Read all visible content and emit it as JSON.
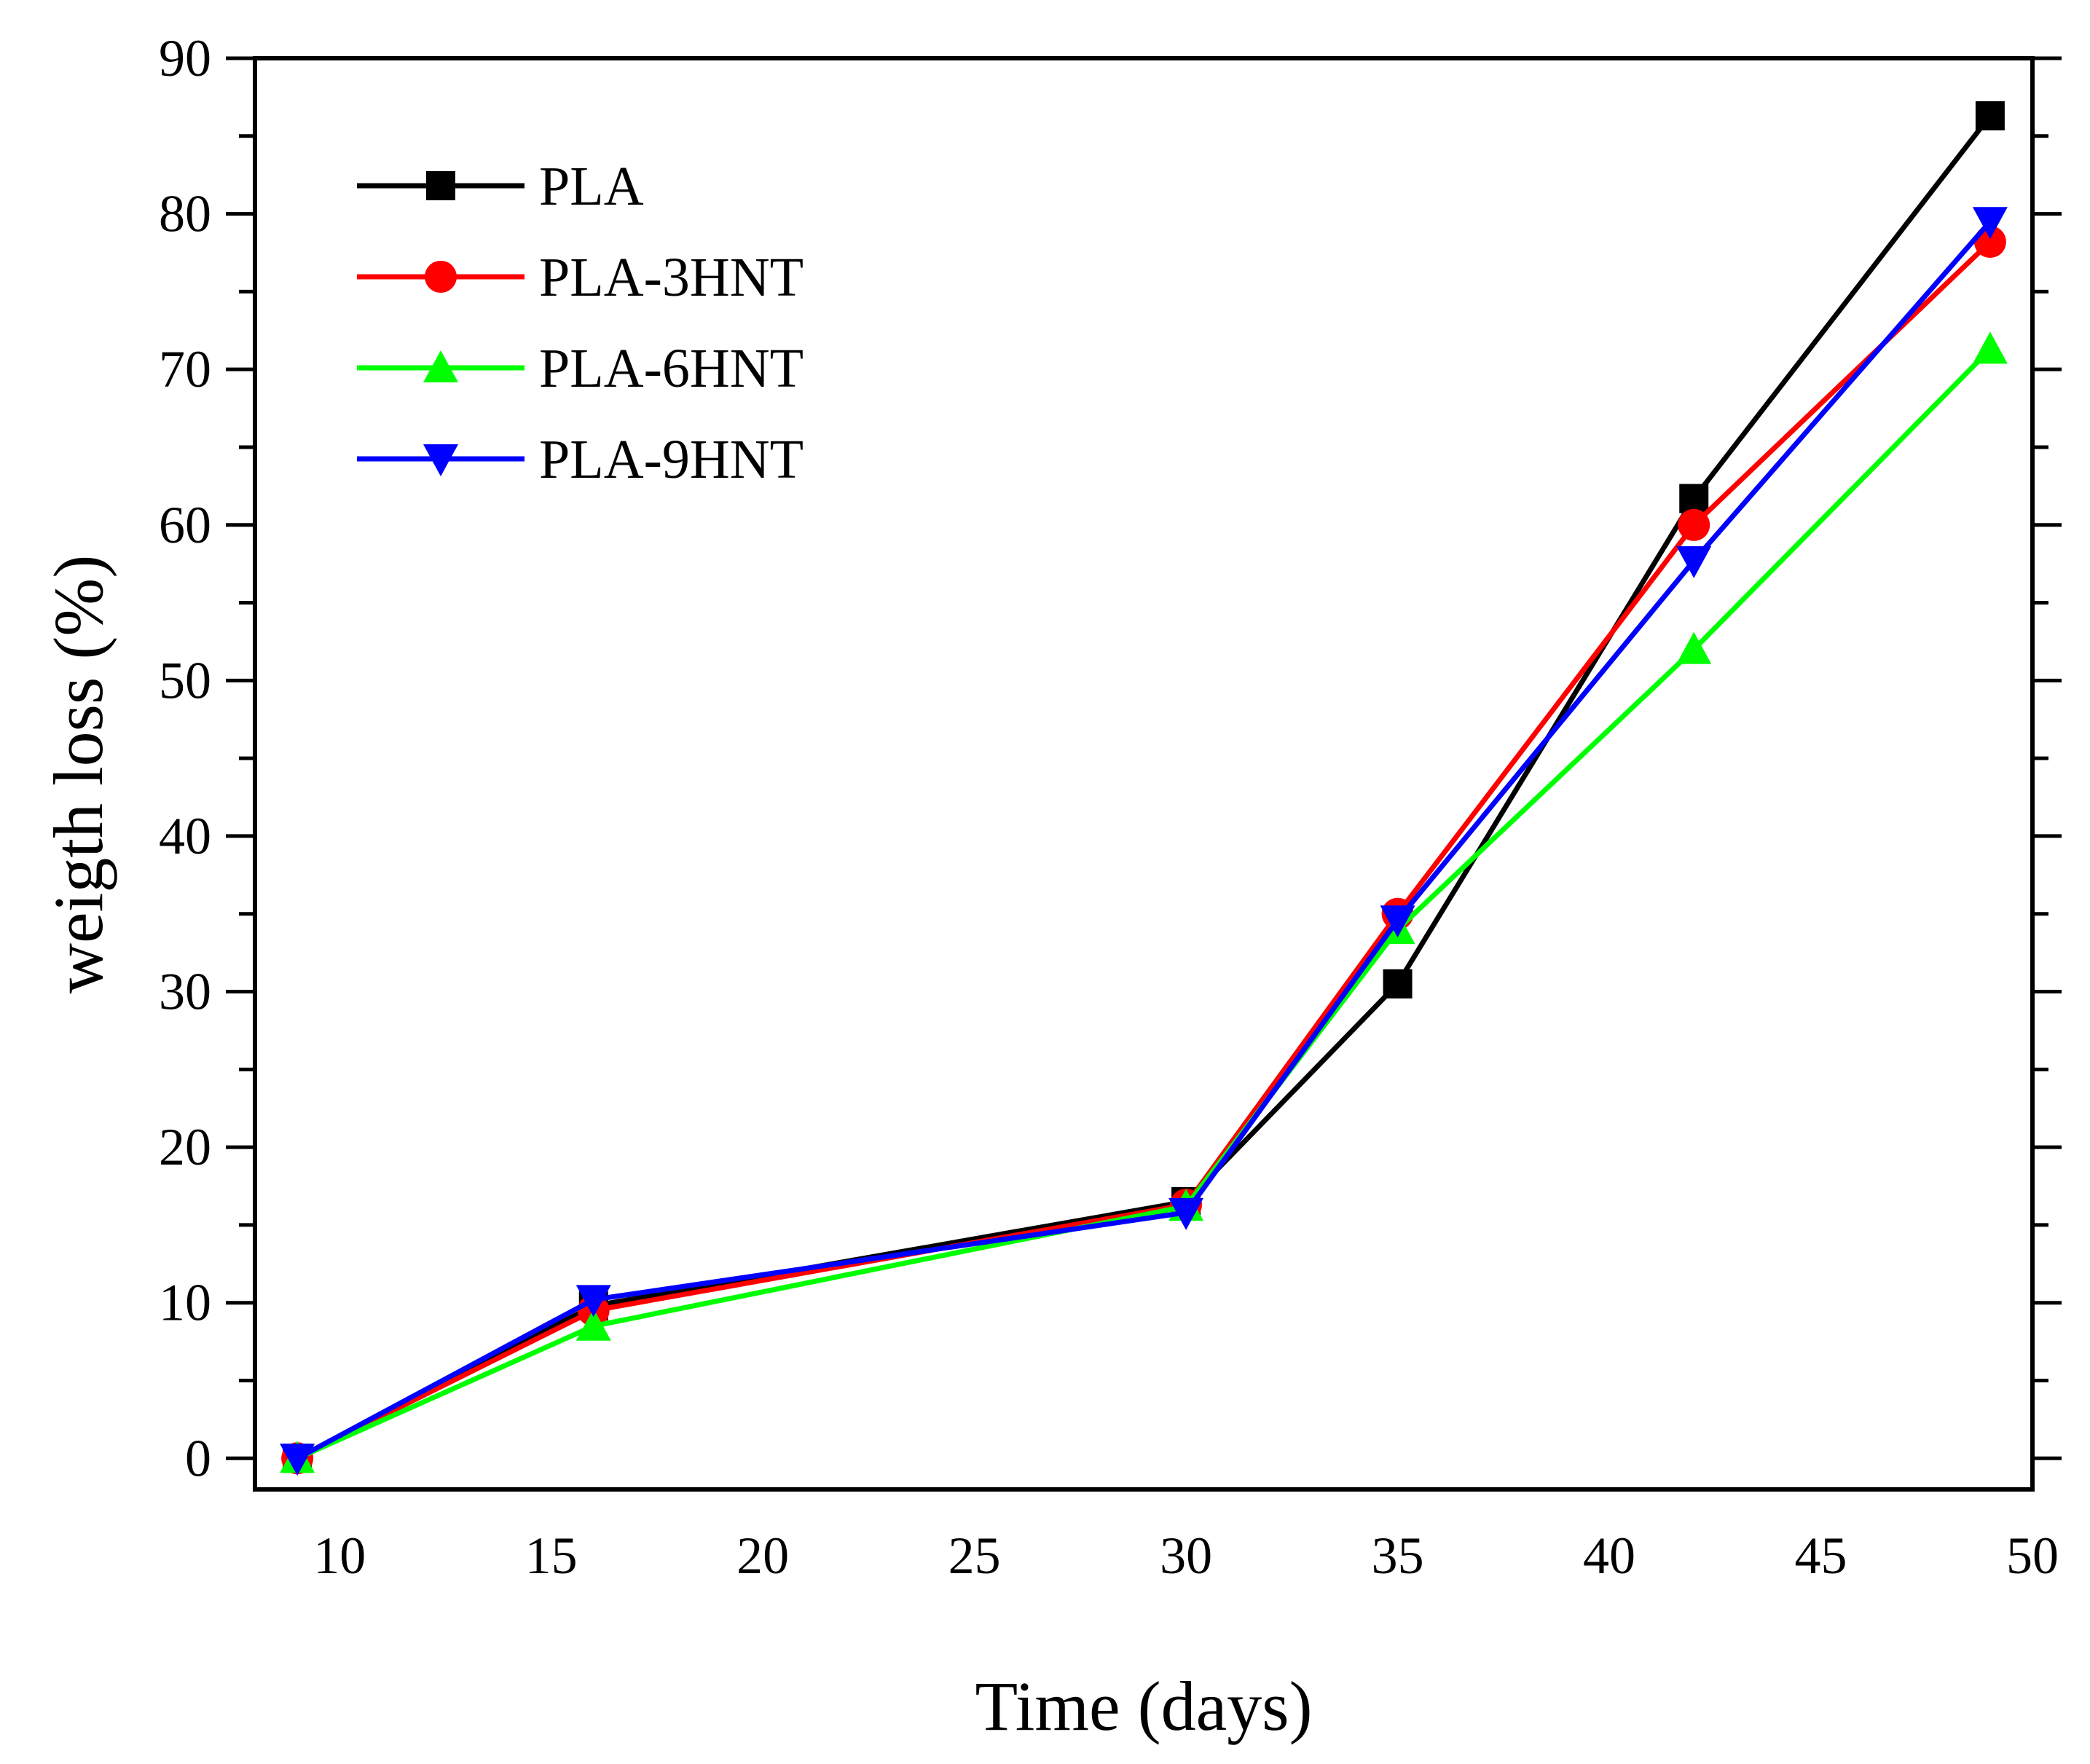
{
  "chart_data": {
    "type": "line",
    "title": "",
    "xlabel": "Time (days)",
    "ylabel": "weigth loss (%)",
    "xlim": [
      8,
      50
    ],
    "ylim": [
      -2,
      90
    ],
    "xticks": [
      10,
      15,
      20,
      25,
      30,
      35,
      40,
      45,
      50
    ],
    "yticks": [
      0,
      10,
      20,
      30,
      40,
      50,
      60,
      70,
      80,
      90
    ],
    "legend_position": "top-left",
    "x": [
      9,
      16,
      30,
      35,
      42,
      49
    ],
    "series": [
      {
        "name": "PLA",
        "color": "#000000",
        "marker": "square",
        "values": [
          0,
          9.8,
          16.5,
          30.5,
          61.7,
          86.3
        ]
      },
      {
        "name": "PLA-3HNT",
        "color": "#ff0000",
        "marker": "circle",
        "values": [
          0,
          9.5,
          16.3,
          35.0,
          60.0,
          78.2
        ]
      },
      {
        "name": "PLA-6HNT",
        "color": "#00ff00",
        "marker": "triangle-up",
        "values": [
          0,
          8.5,
          16.2,
          34.0,
          52.0,
          71.3
        ]
      },
      {
        "name": "PLA-9HNT",
        "color": "#0000ff",
        "marker": "triangle-down",
        "values": [
          0,
          10.2,
          15.8,
          34.6,
          57.7,
          79.5
        ]
      }
    ]
  }
}
